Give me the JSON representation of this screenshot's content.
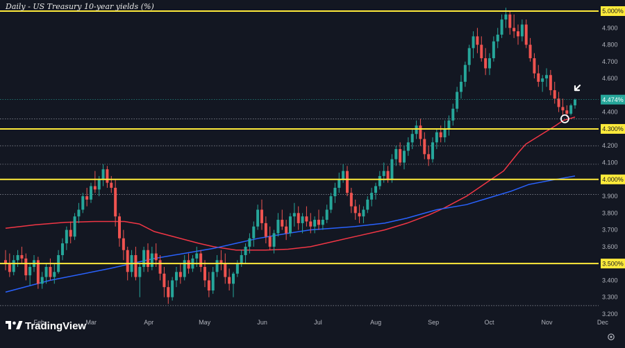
{
  "chart_data": {
    "type": "candlestick",
    "title": "Daily - US Treasury 10-year yields (%)",
    "ylim": [
      3.15,
      5.04
    ],
    "y_ticks": [
      "3.200",
      "3.300",
      "3.400",
      "3.500",
      "3.600",
      "3.700",
      "3.800",
      "3.900",
      "4.000",
      "4.100",
      "4.200",
      "4.300",
      "4.400",
      "4.500",
      "4.600",
      "4.700",
      "4.800",
      "4.900",
      "5.000"
    ],
    "x_labels": [
      "Feb",
      "Mar",
      "Apr",
      "May",
      "Jun",
      "Jul",
      "Aug",
      "Sep",
      "Oct",
      "Nov",
      "Dec"
    ],
    "x_label_days": [
      31,
      59,
      90,
      120,
      151,
      181,
      212,
      243,
      273,
      304,
      334
    ],
    "x_range": [
      10,
      346
    ],
    "horizontal_levels": [
      {
        "value": 5.0,
        "label": "5.000%"
      },
      {
        "value": 4.3,
        "label": "4.300%"
      },
      {
        "value": 4.0,
        "label": "4.000%"
      },
      {
        "value": 3.5,
        "label": "3.500%"
      }
    ],
    "current_value": {
      "value": 4.474,
      "label": "4.474%"
    },
    "dotted_levels": [
      4.36,
      4.2,
      4.09,
      3.91,
      3.25
    ],
    "colors": {
      "up": "#26a69a",
      "down": "#ef5350",
      "level": "#ffeb3b",
      "ma_short": "#f23645",
      "ma_long": "#2962ff",
      "current": "#26a69a",
      "background": "#131722"
    },
    "moving_averages": [
      {
        "type": "ma_short",
        "points": [
          [
            10,
            3.71
          ],
          [
            30,
            3.73
          ],
          [
            50,
            3.745
          ],
          [
            70,
            3.75
          ],
          [
            90,
            3.75
          ],
          [
            100,
            3.735
          ],
          [
            110,
            3.69
          ],
          [
            125,
            3.655
          ],
          [
            140,
            3.62
          ],
          [
            150,
            3.6
          ],
          [
            165,
            3.58
          ],
          [
            185,
            3.58
          ],
          [
            200,
            3.585
          ],
          [
            215,
            3.6
          ],
          [
            230,
            3.63
          ],
          [
            245,
            3.66
          ],
          [
            265,
            3.7
          ],
          [
            280,
            3.74
          ],
          [
            295,
            3.79
          ],
          [
            305,
            3.83
          ],
          [
            320,
            3.9
          ],
          [
            330,
            3.96
          ],
          [
            345,
            4.05
          ],
          [
            355,
            4.16
          ],
          [
            360,
            4.21
          ],
          [
            380,
            4.32
          ],
          [
            385,
            4.35
          ],
          [
            393,
            4.37
          ]
        ]
      },
      {
        "type": "ma_long",
        "points": [
          [
            10,
            3.33
          ],
          [
            40,
            3.4
          ],
          [
            80,
            3.47
          ],
          [
            110,
            3.53
          ],
          [
            130,
            3.56
          ],
          [
            150,
            3.59
          ],
          [
            165,
            3.62
          ],
          [
            180,
            3.65
          ],
          [
            200,
            3.68
          ],
          [
            215,
            3.7
          ],
          [
            230,
            3.71
          ],
          [
            245,
            3.72
          ],
          [
            265,
            3.74
          ],
          [
            280,
            3.77
          ],
          [
            300,
            3.82
          ],
          [
            320,
            3.85
          ],
          [
            335,
            3.89
          ],
          [
            350,
            3.93
          ],
          [
            362,
            3.97
          ],
          [
            380,
            4.0
          ],
          [
            393,
            4.02
          ]
        ]
      }
    ],
    "candles": [
      [
        10,
        3.52,
        3.58,
        3.46,
        3.5
      ],
      [
        12,
        3.5,
        3.56,
        3.42,
        3.45
      ],
      [
        14,
        3.45,
        3.55,
        3.43,
        3.52
      ],
      [
        16,
        3.52,
        3.58,
        3.48,
        3.55
      ],
      [
        18,
        3.55,
        3.6,
        3.5,
        3.53
      ],
      [
        20,
        3.53,
        3.56,
        3.4,
        3.43
      ],
      [
        22,
        3.43,
        3.5,
        3.37,
        3.48
      ],
      [
        24,
        3.48,
        3.55,
        3.45,
        3.52
      ],
      [
        26,
        3.52,
        3.54,
        3.35,
        3.38
      ],
      [
        28,
        3.38,
        3.45,
        3.35,
        3.42
      ],
      [
        30,
        3.42,
        3.5,
        3.38,
        3.48
      ],
      [
        32,
        3.48,
        3.53,
        3.4,
        3.42
      ],
      [
        34,
        3.42,
        3.5,
        3.38,
        3.45
      ],
      [
        36,
        3.45,
        3.58,
        3.44,
        3.55
      ],
      [
        38,
        3.55,
        3.65,
        3.52,
        3.62
      ],
      [
        40,
        3.62,
        3.72,
        3.58,
        3.7
      ],
      [
        42,
        3.7,
        3.75,
        3.62,
        3.66
      ],
      [
        44,
        3.66,
        3.8,
        3.64,
        3.78
      ],
      [
        46,
        3.78,
        3.86,
        3.74,
        3.82
      ],
      [
        48,
        3.82,
        3.92,
        3.8,
        3.9
      ],
      [
        50,
        3.9,
        3.95,
        3.84,
        3.88
      ],
      [
        52,
        3.88,
        3.98,
        3.86,
        3.96
      ],
      [
        54,
        3.96,
        4.05,
        3.92,
        3.94
      ],
      [
        56,
        3.94,
        4.02,
        3.9,
        4.0
      ],
      [
        58,
        4.0,
        4.09,
        3.96,
        4.06
      ],
      [
        60,
        4.06,
        4.08,
        3.95,
        3.98
      ],
      [
        62,
        3.98,
        4.02,
        3.92,
        3.95
      ],
      [
        64,
        3.95,
        4.0,
        3.72,
        3.78
      ],
      [
        66,
        3.78,
        3.8,
        3.6,
        3.65
      ],
      [
        68,
        3.65,
        3.7,
        3.52,
        3.58
      ],
      [
        70,
        3.58,
        3.6,
        3.4,
        3.45
      ],
      [
        72,
        3.45,
        3.58,
        3.42,
        3.55
      ],
      [
        74,
        3.55,
        3.6,
        3.4,
        3.42
      ],
      [
        76,
        3.42,
        3.5,
        3.3,
        3.48
      ],
      [
        78,
        3.48,
        3.6,
        3.45,
        3.58
      ],
      [
        80,
        3.58,
        3.62,
        3.45,
        3.48
      ],
      [
        82,
        3.48,
        3.6,
        3.46,
        3.56
      ],
      [
        84,
        3.56,
        3.62,
        3.48,
        3.52
      ],
      [
        86,
        3.52,
        3.55,
        3.4,
        3.44
      ],
      [
        88,
        3.44,
        3.48,
        3.3,
        3.36
      ],
      [
        90,
        3.36,
        3.4,
        3.26,
        3.3
      ],
      [
        92,
        3.3,
        3.42,
        3.28,
        3.4
      ],
      [
        94,
        3.4,
        3.48,
        3.36,
        3.45
      ],
      [
        96,
        3.45,
        3.5,
        3.38,
        3.42
      ],
      [
        98,
        3.42,
        3.55,
        3.4,
        3.52
      ],
      [
        100,
        3.52,
        3.56,
        3.44,
        3.47
      ],
      [
        102,
        3.47,
        3.55,
        3.45,
        3.53
      ],
      [
        104,
        3.53,
        3.6,
        3.48,
        3.56
      ],
      [
        106,
        3.56,
        3.58,
        3.45,
        3.48
      ],
      [
        108,
        3.48,
        3.52,
        3.36,
        3.4
      ],
      [
        110,
        3.4,
        3.45,
        3.3,
        3.34
      ],
      [
        112,
        3.34,
        3.48,
        3.32,
        3.45
      ],
      [
        114,
        3.45,
        3.55,
        3.42,
        3.52
      ],
      [
        116,
        3.52,
        3.58,
        3.46,
        3.5
      ],
      [
        118,
        3.5,
        3.56,
        3.38,
        3.42
      ],
      [
        120,
        3.42,
        3.47,
        3.34,
        3.38
      ],
      [
        122,
        3.38,
        3.45,
        3.3,
        3.44
      ],
      [
        124,
        3.44,
        3.52,
        3.42,
        3.5
      ],
      [
        126,
        3.5,
        3.58,
        3.48,
        3.55
      ],
      [
        128,
        3.55,
        3.62,
        3.5,
        3.6
      ],
      [
        130,
        3.6,
        3.68,
        3.56,
        3.65
      ],
      [
        132,
        3.65,
        3.75,
        3.6,
        3.72
      ],
      [
        134,
        3.72,
        3.85,
        3.7,
        3.82
      ],
      [
        136,
        3.82,
        3.88,
        3.7,
        3.74
      ],
      [
        138,
        3.74,
        3.78,
        3.62,
        3.66
      ],
      [
        140,
        3.66,
        3.72,
        3.58,
        3.6
      ],
      [
        142,
        3.6,
        3.7,
        3.56,
        3.68
      ],
      [
        144,
        3.68,
        3.8,
        3.66,
        3.76
      ],
      [
        146,
        3.76,
        3.82,
        3.7,
        3.72
      ],
      [
        148,
        3.72,
        3.76,
        3.64,
        3.68
      ],
      [
        150,
        3.68,
        3.8,
        3.66,
        3.78
      ],
      [
        152,
        3.78,
        3.86,
        3.72,
        3.8
      ],
      [
        154,
        3.8,
        3.84,
        3.7,
        3.74
      ],
      [
        156,
        3.74,
        3.8,
        3.68,
        3.78
      ],
      [
        158,
        3.78,
        3.84,
        3.72,
        3.75
      ],
      [
        160,
        3.75,
        3.8,
        3.68,
        3.72
      ],
      [
        162,
        3.72,
        3.78,
        3.68,
        3.76
      ],
      [
        164,
        3.76,
        3.82,
        3.7,
        3.73
      ],
      [
        166,
        3.73,
        3.78,
        3.7,
        3.76
      ],
      [
        168,
        3.76,
        3.85,
        3.74,
        3.82
      ],
      [
        170,
        3.82,
        3.92,
        3.8,
        3.9
      ],
      [
        172,
        3.9,
        3.98,
        3.86,
        3.95
      ],
      [
        174,
        3.95,
        4.04,
        3.92,
        4.0
      ],
      [
        176,
        4.0,
        4.09,
        3.98,
        4.05
      ],
      [
        178,
        4.05,
        4.08,
        3.9,
        3.92
      ],
      [
        180,
        3.92,
        3.95,
        3.8,
        3.84
      ],
      [
        182,
        3.84,
        3.88,
        3.76,
        3.8
      ],
      [
        184,
        3.8,
        3.85,
        3.74,
        3.78
      ],
      [
        186,
        3.78,
        3.84,
        3.74,
        3.82
      ],
      [
        188,
        3.82,
        3.9,
        3.8,
        3.88
      ],
      [
        190,
        3.88,
        3.95,
        3.84,
        3.92
      ],
      [
        192,
        3.92,
        3.98,
        3.88,
        3.96
      ],
      [
        194,
        3.96,
        4.05,
        3.94,
        4.02
      ],
      [
        196,
        4.02,
        4.1,
        3.98,
        4.05
      ],
      [
        198,
        4.05,
        4.08,
        3.98,
        4.0
      ],
      [
        200,
        4.0,
        4.15,
        3.98,
        4.12
      ],
      [
        202,
        4.12,
        4.2,
        4.08,
        4.18
      ],
      [
        204,
        4.18,
        4.22,
        4.08,
        4.1
      ],
      [
        206,
        4.1,
        4.2,
        4.06,
        4.17
      ],
      [
        208,
        4.17,
        4.25,
        4.14,
        4.22
      ],
      [
        210,
        4.22,
        4.3,
        4.18,
        4.27
      ],
      [
        212,
        4.27,
        4.35,
        4.24,
        4.32
      ],
      [
        214,
        4.32,
        4.36,
        4.2,
        4.24
      ],
      [
        216,
        4.24,
        4.28,
        4.12,
        4.15
      ],
      [
        218,
        4.15,
        4.2,
        4.08,
        4.12
      ],
      [
        220,
        4.12,
        4.25,
        4.1,
        4.22
      ],
      [
        222,
        4.22,
        4.3,
        4.18,
        4.28
      ],
      [
        224,
        4.28,
        4.32,
        4.22,
        4.25
      ],
      [
        226,
        4.25,
        4.35,
        4.22,
        4.3
      ],
      [
        228,
        4.3,
        4.38,
        4.26,
        4.35
      ],
      [
        230,
        4.35,
        4.45,
        4.32,
        4.42
      ],
      [
        232,
        4.42,
        4.55,
        4.4,
        4.52
      ],
      [
        234,
        4.52,
        4.62,
        4.48,
        4.58
      ],
      [
        236,
        4.58,
        4.7,
        4.55,
        4.68
      ],
      [
        238,
        4.68,
        4.8,
        4.64,
        4.78
      ],
      [
        240,
        4.78,
        4.88,
        4.72,
        4.85
      ],
      [
        242,
        4.85,
        4.9,
        4.75,
        4.8
      ],
      [
        244,
        4.8,
        4.85,
        4.7,
        4.72
      ],
      [
        246,
        4.72,
        4.78,
        4.62,
        4.66
      ],
      [
        248,
        4.66,
        4.75,
        4.62,
        4.72
      ],
      [
        250,
        4.72,
        4.85,
        4.7,
        4.82
      ],
      [
        252,
        4.82,
        4.9,
        4.78,
        4.86
      ],
      [
        254,
        4.86,
        4.98,
        4.84,
        4.95
      ],
      [
        256,
        4.95,
        5.02,
        4.9,
        4.98
      ],
      [
        258,
        4.98,
        5.0,
        4.86,
        4.9
      ],
      [
        260,
        4.9,
        4.98,
        4.84,
        4.88
      ],
      [
        262,
        4.88,
        4.92,
        4.8,
        4.85
      ],
      [
        264,
        4.85,
        4.95,
        4.82,
        4.92
      ],
      [
        266,
        4.92,
        4.95,
        4.78,
        4.8
      ],
      [
        268,
        4.8,
        4.84,
        4.7,
        4.72
      ],
      [
        270,
        4.72,
        4.75,
        4.6,
        4.63
      ],
      [
        272,
        4.63,
        4.68,
        4.55,
        4.58
      ],
      [
        274,
        4.58,
        4.62,
        4.52,
        4.6
      ],
      [
        276,
        4.6,
        4.66,
        4.55,
        4.62
      ],
      [
        278,
        4.62,
        4.65,
        4.5,
        4.53
      ],
      [
        280,
        4.53,
        4.58,
        4.45,
        4.48
      ],
      [
        282,
        4.48,
        4.52,
        4.4,
        4.43
      ],
      [
        284,
        4.43,
        4.48,
        4.38,
        4.41
      ],
      [
        286,
        4.41,
        4.44,
        4.37,
        4.39
      ],
      [
        288,
        4.39,
        4.45,
        4.38,
        4.44
      ],
      [
        290,
        4.44,
        4.48,
        4.42,
        4.474
      ]
    ],
    "annotations": [
      {
        "type": "circle-marker",
        "x": 285,
        "y": 4.36
      },
      {
        "type": "arrow-marker",
        "x": 290,
        "y": 4.53
      }
    ]
  },
  "branding": {
    "logo_text": "TradingView"
  },
  "settings_icon": "gear-icon"
}
